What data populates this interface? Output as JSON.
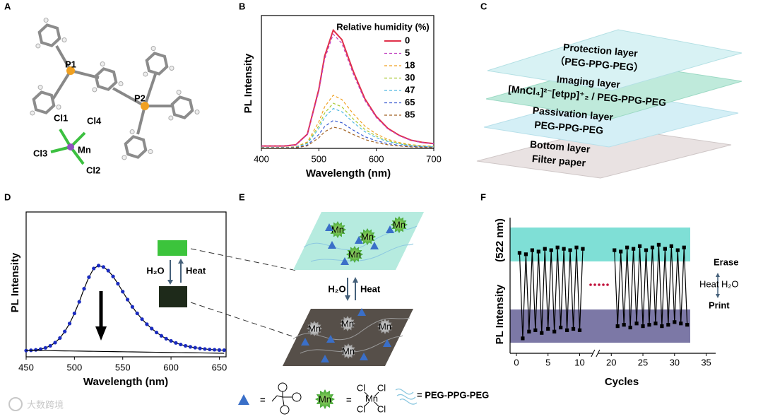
{
  "panels": {
    "labels": [
      "A",
      "B",
      "C",
      "D",
      "E",
      "F"
    ]
  },
  "structure_A": {
    "atoms": [
      "P1",
      "P2",
      "Cl1",
      "Cl4",
      "Cl3",
      "Mn",
      "Cl2"
    ]
  },
  "layers_C": [
    {
      "name": "Protection layer",
      "material": "（PEG-PPG-PEG）"
    },
    {
      "name": "Imaging layer",
      "material": "[MnCl₄]²⁻[etpp]⁺₂  / PEG-PPG-PEG"
    },
    {
      "name": "Passivation layer",
      "material": "PEG-PPG-PEG"
    },
    {
      "name": "Bottom layer",
      "material": "Filter paper"
    }
  ],
  "scheme_E": {
    "water": "H₂O",
    "heat": "Heat",
    "mn": "Mn",
    "cl": "Cl",
    "equals": "=",
    "polymer": "= PEG-PPG-PEG"
  },
  "watermark": "大数跨境",
  "chart_data": [
    {
      "type": "line",
      "xlabel": "Wavelength (nm)",
      "ylabel": "PL Intensity",
      "x": [
        400,
        420,
        440,
        460,
        480,
        500,
        510,
        525,
        540,
        560,
        580,
        600,
        620,
        640,
        660,
        680,
        700
      ],
      "xlim": [
        400,
        700
      ],
      "xticks": [
        400,
        500,
        600,
        700
      ],
      "ylim": [
        0,
        100
      ],
      "legend": "upper right",
      "legend_title": "Relative humidity (%)",
      "series": [
        {
          "name": "0",
          "color": "#e0304a",
          "linestyle": "solid",
          "values": [
            1.8,
            1.8,
            1.8,
            2.7,
            10.7,
            44.5,
            69.4,
            89,
            81.9,
            57.9,
            37.4,
            24,
            15.1,
            9.8,
            6.2,
            4.5,
            3.6
          ]
        },
        {
          "name": "5",
          "color": "#c040c0",
          "linestyle": "dashed",
          "values": [
            1.7,
            1.7,
            1.7,
            2.6,
            10.3,
            43,
            67.1,
            86,
            79.1,
            55.9,
            36.1,
            23.2,
            14.6,
            9.5,
            6,
            4.3,
            3.4
          ]
        },
        {
          "name": "18",
          "color": "#f0a020",
          "linestyle": "dashed",
          "values": [
            0.8,
            0.8,
            0.8,
            1.2,
            4.8,
            20,
            31.2,
            40,
            36.8,
            26,
            16.8,
            10.8,
            6.8,
            4.4,
            2.8,
            2,
            1.6
          ]
        },
        {
          "name": "30",
          "color": "#a8c830",
          "linestyle": "dashed",
          "values": [
            0.7,
            0.7,
            0.7,
            1,
            4.1,
            17,
            26.5,
            34,
            31.3,
            22.1,
            14.3,
            9.2,
            5.8,
            3.7,
            2.4,
            1.7,
            1.4
          ]
        },
        {
          "name": "47",
          "color": "#50b8e0",
          "linestyle": "dashed",
          "values": [
            0.6,
            0.6,
            0.6,
            0.9,
            3.6,
            15,
            23.4,
            30,
            27.6,
            19.5,
            12.6,
            8.1,
            5.1,
            3.3,
            2.1,
            1.5,
            1.2
          ]
        },
        {
          "name": "65",
          "color": "#3a5cd0",
          "linestyle": "dashed",
          "values": [
            0.4,
            0.4,
            0.4,
            0.6,
            2.5,
            10.5,
            16.4,
            21,
            19.3,
            13.7,
            8.8,
            5.7,
            3.6,
            2.3,
            1.5,
            1.1,
            0.8
          ]
        },
        {
          "name": "85",
          "color": "#a06020",
          "linestyle": "dashed",
          "values": [
            0.3,
            0.3,
            0.3,
            0.5,
            1.9,
            8,
            12.5,
            16,
            14.7,
            10.4,
            6.7,
            4.3,
            2.7,
            1.8,
            1.1,
            0.8,
            0.6
          ]
        }
      ]
    },
    {
      "type": "line",
      "xlabel": "Wavelength (nm)",
      "ylabel": "PL Intensity",
      "x": [
        450,
        455,
        460,
        465,
        470,
        475,
        480,
        485,
        490,
        495,
        500,
        505,
        510,
        515,
        520,
        525,
        530,
        535,
        540,
        545,
        550,
        555,
        560,
        565,
        570,
        575,
        580,
        585,
        590,
        595,
        600,
        605,
        610,
        615,
        620,
        625,
        630,
        635,
        640,
        645,
        650,
        655
      ],
      "xlim": [
        450,
        657
      ],
      "xticks": [
        450,
        500,
        550,
        600,
        650
      ],
      "ylim": [
        0,
        100
      ],
      "annotations": [
        "H₂O",
        "Heat"
      ],
      "series": [
        {
          "color": "#1a2bc0",
          "line_color": "#000000",
          "marker": "circle",
          "values": [
            4.3,
            4.5,
            4.8,
            5.3,
            6.2,
            7.6,
            9.8,
            13,
            17.5,
            23,
            30,
            38,
            47,
            55,
            61,
            63,
            62,
            59.5,
            55.5,
            50.5,
            45,
            39.5,
            34.5,
            30,
            26,
            22.5,
            19.5,
            16.8,
            14.5,
            12.5,
            11,
            9.6,
            8.5,
            7.6,
            6.9,
            6.3,
            5.8,
            5.4,
            5.1,
            4.9,
            4.7,
            4.6
          ]
        },
        {
          "color": "#000000",
          "line_color": "#000000",
          "values": [
            4.5,
            4.45,
            4.4,
            4.35,
            4.3,
            4.25,
            4.2,
            4.15,
            4.1,
            4.05,
            4,
            3.95,
            3.9,
            3.85,
            3.8,
            3.75,
            3.7,
            3.65,
            3.6,
            3.55,
            3.5,
            3.45,
            3.4,
            3.35,
            3.3,
            3.25,
            3.2,
            3.15,
            3.1,
            3.05,
            3,
            2.95,
            2.9,
            2.85,
            2.8,
            2.75,
            2.7,
            2.65,
            2.6,
            2.55,
            2.5,
            2.45
          ]
        }
      ]
    },
    {
      "type": "line",
      "xlabel": "Cycles",
      "ylabel": "PL Intensity",
      "ylabel_unit": "(522 nm)",
      "xlim": [
        -1,
        36.5
      ],
      "xbreak": [
        12.5,
        17.5
      ],
      "xticks": [
        0,
        5,
        10,
        20,
        25,
        30,
        35
      ],
      "ylim": [
        0,
        100
      ],
      "annotations": [
        "Erase",
        "Heat",
        "H₂O",
        "Print"
      ],
      "series": [
        {
          "color": "#000000",
          "line_color": "#000000",
          "marker": "square",
          "x": [
            0.5,
            1,
            1.5,
            2,
            2.5,
            3,
            3.5,
            4,
            4.5,
            5,
            5.5,
            6,
            6.5,
            7,
            7.5,
            8,
            8.5,
            9,
            9.5,
            10,
            10.5
          ],
          "values": [
            74,
            11,
            73,
            16,
            76,
            17,
            75,
            15,
            77,
            18,
            76,
            16,
            78,
            19,
            77,
            17,
            76,
            18,
            78,
            17,
            77
          ]
        },
        {
          "color": "#000000",
          "line_color": "#000000",
          "marker": "square",
          "x": [
            20.5,
            21,
            21.5,
            22,
            22.5,
            23,
            23.5,
            24,
            24.5,
            25,
            25.5,
            26,
            26.5,
            27,
            27.5,
            28,
            28.5,
            29,
            29.5,
            30,
            30.5,
            31,
            31.5,
            32
          ],
          "values": [
            76,
            20,
            75,
            21,
            78,
            19,
            77,
            22,
            79,
            20,
            76,
            21,
            78,
            22,
            80,
            20,
            77,
            21,
            79,
            23,
            76,
            22,
            78,
            21
          ]
        }
      ]
    }
  ]
}
